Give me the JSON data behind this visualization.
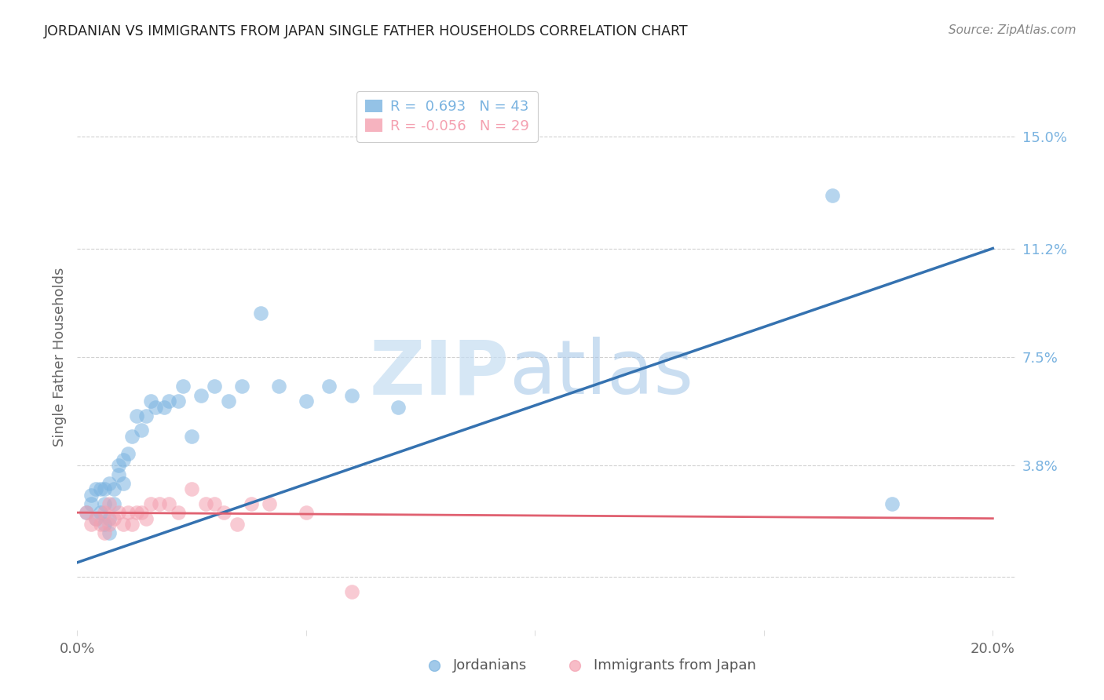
{
  "title": "JORDANIAN VS IMMIGRANTS FROM JAPAN SINGLE FATHER HOUSEHOLDS CORRELATION CHART",
  "source": "Source: ZipAtlas.com",
  "ylabel": "Single Father Households",
  "xlim": [
    0.0,
    0.205
  ],
  "ylim": [
    -0.018,
    0.168
  ],
  "yticks": [
    0.0,
    0.038,
    0.075,
    0.112,
    0.15
  ],
  "ytick_labels": [
    "",
    "3.8%",
    "7.5%",
    "11.2%",
    "15.0%"
  ],
  "xticks": [
    0.0,
    0.05,
    0.1,
    0.15,
    0.2
  ],
  "blue_color": "#7ab3e0",
  "pink_color": "#f4a0b0",
  "blue_line_color": "#3572b0",
  "pink_line_color": "#e06070",
  "jordanians_x": [
    0.002,
    0.003,
    0.003,
    0.004,
    0.004,
    0.005,
    0.005,
    0.006,
    0.006,
    0.006,
    0.007,
    0.007,
    0.007,
    0.008,
    0.008,
    0.009,
    0.009,
    0.01,
    0.01,
    0.011,
    0.012,
    0.013,
    0.014,
    0.015,
    0.016,
    0.017,
    0.019,
    0.02,
    0.022,
    0.023,
    0.025,
    0.027,
    0.03,
    0.033,
    0.036,
    0.04,
    0.044,
    0.05,
    0.055,
    0.06,
    0.07,
    0.165,
    0.178
  ],
  "jordanians_y": [
    0.022,
    0.025,
    0.028,
    0.02,
    0.03,
    0.022,
    0.03,
    0.018,
    0.025,
    0.03,
    0.015,
    0.02,
    0.032,
    0.025,
    0.03,
    0.035,
    0.038,
    0.032,
    0.04,
    0.042,
    0.048,
    0.055,
    0.05,
    0.055,
    0.06,
    0.058,
    0.058,
    0.06,
    0.06,
    0.065,
    0.048,
    0.062,
    0.065,
    0.06,
    0.065,
    0.09,
    0.065,
    0.06,
    0.065,
    0.062,
    0.058,
    0.13,
    0.025
  ],
  "japan_x": [
    0.002,
    0.003,
    0.004,
    0.005,
    0.006,
    0.006,
    0.007,
    0.007,
    0.008,
    0.009,
    0.01,
    0.011,
    0.012,
    0.013,
    0.014,
    0.015,
    0.016,
    0.018,
    0.02,
    0.022,
    0.025,
    0.028,
    0.03,
    0.032,
    0.035,
    0.038,
    0.042,
    0.05,
    0.06
  ],
  "japan_y": [
    0.022,
    0.018,
    0.02,
    0.018,
    0.015,
    0.022,
    0.018,
    0.025,
    0.02,
    0.022,
    0.018,
    0.022,
    0.018,
    0.022,
    0.022,
    0.02,
    0.025,
    0.025,
    0.025,
    0.022,
    0.03,
    0.025,
    0.025,
    0.022,
    0.018,
    0.025,
    0.025,
    0.022,
    -0.005
  ],
  "blue_line_x0": 0.0,
  "blue_line_y0": 0.005,
  "blue_line_x1": 0.2,
  "blue_line_y1": 0.112,
  "pink_line_x0": 0.0,
  "pink_line_y0": 0.022,
  "pink_line_x1": 0.2,
  "pink_line_y1": 0.02
}
